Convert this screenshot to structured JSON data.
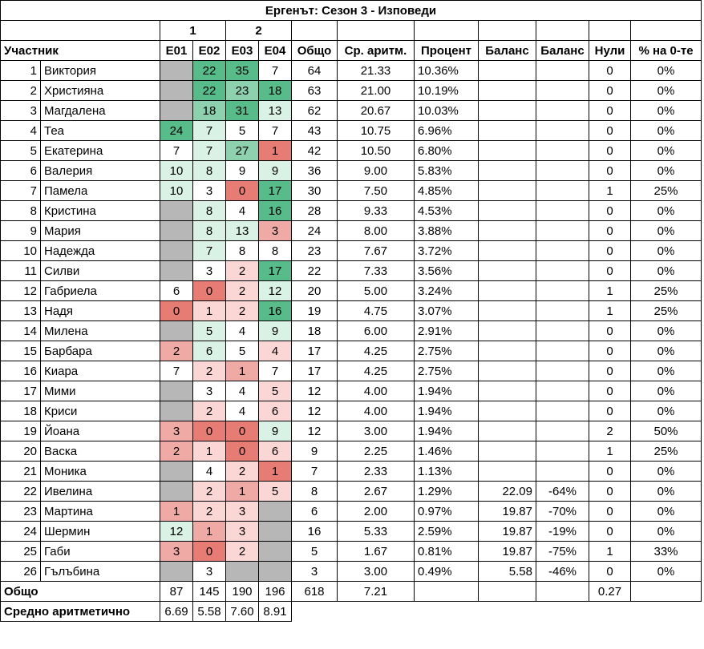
{
  "title": "Ергенът: Сезон 3 - Изповеди",
  "group_labels": [
    "1",
    "2"
  ],
  "headers": [
    "Участник",
    "E01",
    "E02",
    "E03",
    "E04",
    "Общо",
    "Ср. аритм.",
    "Процент",
    "Баланс",
    "Баланс",
    "Нули",
    "% на 0-те"
  ],
  "colors": {
    "gray": "#b7b7b7",
    "red_strong": "#e67c73",
    "red_medium": "#f0aaa6",
    "red_light": "#fad7d4",
    "green_strong": "#57bb8a",
    "green_medium": "#8dd1ae",
    "green_light": "#daf1e5",
    "none": "#ffffff"
  },
  "rows": [
    {
      "rank": "1",
      "name": "Виктория",
      "e": [
        "",
        "22",
        "35",
        "7"
      ],
      "e_color": [
        "gray",
        "green_strong",
        "green_strong",
        "none"
      ],
      "total": "64",
      "avg": "21.33",
      "pct": "10.36%",
      "bal1": "",
      "bal2": "",
      "zeros": "0",
      "zpct": "0%"
    },
    {
      "rank": "2",
      "name": "Християна",
      "e": [
        "",
        "22",
        "23",
        "18"
      ],
      "e_color": [
        "gray",
        "green_strong",
        "green_medium",
        "green_strong"
      ],
      "total": "63",
      "avg": "21.00",
      "pct": "10.19%",
      "bal1": "",
      "bal2": "",
      "zeros": "0",
      "zpct": "0%"
    },
    {
      "rank": "3",
      "name": "Магдалена",
      "e": [
        "",
        "18",
        "31",
        "13"
      ],
      "e_color": [
        "gray",
        "green_medium",
        "green_strong",
        "green_light"
      ],
      "total": "62",
      "avg": "20.67",
      "pct": "10.03%",
      "bal1": "",
      "bal2": "",
      "zeros": "0",
      "zpct": "0%"
    },
    {
      "rank": "4",
      "name": "Теа",
      "e": [
        "24",
        "7",
        "5",
        "7"
      ],
      "e_color": [
        "green_strong",
        "green_light",
        "none",
        "none"
      ],
      "total": "43",
      "avg": "10.75",
      "pct": "6.96%",
      "bal1": "",
      "bal2": "",
      "zeros": "0",
      "zpct": "0%"
    },
    {
      "rank": "5",
      "name": "Екатерина",
      "e": [
        "7",
        "7",
        "27",
        "1"
      ],
      "e_color": [
        "none",
        "green_light",
        "green_medium",
        "red_strong"
      ],
      "total": "42",
      "avg": "10.50",
      "pct": "6.80%",
      "bal1": "",
      "bal2": "",
      "zeros": "0",
      "zpct": "0%"
    },
    {
      "rank": "6",
      "name": "Валерия",
      "e": [
        "10",
        "8",
        "9",
        "9"
      ],
      "e_color": [
        "green_light",
        "green_light",
        "none",
        "green_light"
      ],
      "total": "36",
      "avg": "9.00",
      "pct": "5.83%",
      "bal1": "",
      "bal2": "",
      "zeros": "0",
      "zpct": "0%"
    },
    {
      "rank": "7",
      "name": "Памела",
      "e": [
        "10",
        "3",
        "0",
        "17"
      ],
      "e_color": [
        "green_light",
        "none",
        "red_strong",
        "green_strong"
      ],
      "total": "30",
      "avg": "7.50",
      "pct": "4.85%",
      "bal1": "",
      "bal2": "",
      "zeros": "1",
      "zpct": "25%"
    },
    {
      "rank": "8",
      "name": "Кристина",
      "e": [
        "",
        "8",
        "4",
        "16"
      ],
      "e_color": [
        "gray",
        "green_light",
        "none",
        "green_strong"
      ],
      "total": "28",
      "avg": "9.33",
      "pct": "4.53%",
      "bal1": "",
      "bal2": "",
      "zeros": "0",
      "zpct": "0%"
    },
    {
      "rank": "9",
      "name": "Мария",
      "e": [
        "",
        "8",
        "13",
        "3"
      ],
      "e_color": [
        "gray",
        "green_light",
        "green_light",
        "red_medium"
      ],
      "total": "24",
      "avg": "8.00",
      "pct": "3.88%",
      "bal1": "",
      "bal2": "",
      "zeros": "0",
      "zpct": "0%"
    },
    {
      "rank": "10",
      "name": "Надежда",
      "e": [
        "",
        "7",
        "8",
        "8"
      ],
      "e_color": [
        "gray",
        "green_light",
        "none",
        "none"
      ],
      "total": "23",
      "avg": "7.67",
      "pct": "3.72%",
      "bal1": "",
      "bal2": "",
      "zeros": "0",
      "zpct": "0%"
    },
    {
      "rank": "11",
      "name": "Силви",
      "e": [
        "",
        "3",
        "2",
        "17"
      ],
      "e_color": [
        "gray",
        "none",
        "red_light",
        "green_strong"
      ],
      "total": "22",
      "avg": "7.33",
      "pct": "3.56%",
      "bal1": "",
      "bal2": "",
      "zeros": "0",
      "zpct": "0%"
    },
    {
      "rank": "12",
      "name": "Габриела",
      "e": [
        "6",
        "0",
        "2",
        "12"
      ],
      "e_color": [
        "none",
        "red_strong",
        "red_light",
        "green_light"
      ],
      "total": "20",
      "avg": "5.00",
      "pct": "3.24%",
      "bal1": "",
      "bal2": "",
      "zeros": "1",
      "zpct": "25%"
    },
    {
      "rank": "13",
      "name": "Надя",
      "e": [
        "0",
        "1",
        "2",
        "16"
      ],
      "e_color": [
        "red_strong",
        "red_light",
        "red_light",
        "green_strong"
      ],
      "total": "19",
      "avg": "4.75",
      "pct": "3.07%",
      "bal1": "",
      "bal2": "",
      "zeros": "1",
      "zpct": "25%"
    },
    {
      "rank": "14",
      "name": "Милена",
      "e": [
        "",
        "5",
        "4",
        "9"
      ],
      "e_color": [
        "gray",
        "green_light",
        "none",
        "green_light"
      ],
      "total": "18",
      "avg": "6.00",
      "pct": "2.91%",
      "bal1": "",
      "bal2": "",
      "zeros": "0",
      "zpct": "0%"
    },
    {
      "rank": "15",
      "name": "Барбара",
      "e": [
        "2",
        "6",
        "5",
        "4"
      ],
      "e_color": [
        "red_medium",
        "green_light",
        "none",
        "red_light"
      ],
      "total": "17",
      "avg": "4.25",
      "pct": "2.75%",
      "bal1": "",
      "bal2": "",
      "zeros": "0",
      "zpct": "0%"
    },
    {
      "rank": "16",
      "name": "Киара",
      "e": [
        "7",
        "2",
        "1",
        "7"
      ],
      "e_color": [
        "none",
        "red_light",
        "red_medium",
        "none"
      ],
      "total": "17",
      "avg": "4.25",
      "pct": "2.75%",
      "bal1": "",
      "bal2": "",
      "zeros": "0",
      "zpct": "0%"
    },
    {
      "rank": "17",
      "name": "Мими",
      "e": [
        "",
        "3",
        "4",
        "5"
      ],
      "e_color": [
        "gray",
        "none",
        "none",
        "red_light"
      ],
      "total": "12",
      "avg": "4.00",
      "pct": "1.94%",
      "bal1": "",
      "bal2": "",
      "zeros": "0",
      "zpct": "0%"
    },
    {
      "rank": "18",
      "name": "Криси",
      "e": [
        "",
        "2",
        "4",
        "6"
      ],
      "e_color": [
        "gray",
        "red_light",
        "none",
        "red_light"
      ],
      "total": "12",
      "avg": "4.00",
      "pct": "1.94%",
      "bal1": "",
      "bal2": "",
      "zeros": "0",
      "zpct": "0%"
    },
    {
      "rank": "19",
      "name": "Йоана",
      "e": [
        "3",
        "0",
        "0",
        "9"
      ],
      "e_color": [
        "red_medium",
        "red_strong",
        "red_strong",
        "green_light"
      ],
      "total": "12",
      "avg": "3.00",
      "pct": "1.94%",
      "bal1": "",
      "bal2": "",
      "zeros": "2",
      "zpct": "50%"
    },
    {
      "rank": "20",
      "name": "Васка",
      "e": [
        "2",
        "1",
        "0",
        "6"
      ],
      "e_color": [
        "red_medium",
        "red_light",
        "red_strong",
        "red_light"
      ],
      "total": "9",
      "avg": "2.25",
      "pct": "1.46%",
      "bal1": "",
      "bal2": "",
      "zeros": "1",
      "zpct": "25%"
    },
    {
      "rank": "21",
      "name": "Моника",
      "e": [
        "",
        "4",
        "2",
        "1"
      ],
      "e_color": [
        "gray",
        "none",
        "red_light",
        "red_strong"
      ],
      "total": "7",
      "avg": "2.33",
      "pct": "1.13%",
      "bal1": "",
      "bal2": "",
      "zeros": "0",
      "zpct": "0%"
    },
    {
      "rank": "22",
      "name": "Ивелина",
      "e": [
        "",
        "2",
        "1",
        "5"
      ],
      "e_color": [
        "gray",
        "red_light",
        "red_medium",
        "red_light"
      ],
      "total": "8",
      "avg": "2.67",
      "pct": "1.29%",
      "bal1": "22.09",
      "bal2": "-64%",
      "zeros": "0",
      "zpct": "0%"
    },
    {
      "rank": "23",
      "name": "Мартина",
      "e": [
        "1",
        "2",
        "3",
        ""
      ],
      "e_color": [
        "red_medium",
        "red_light",
        "red_light",
        "gray"
      ],
      "total": "6",
      "avg": "2.00",
      "pct": "0.97%",
      "bal1": "19.87",
      "bal2": "-70%",
      "zeros": "0",
      "zpct": "0%"
    },
    {
      "rank": "24",
      "name": "Шермин",
      "e": [
        "12",
        "1",
        "3",
        ""
      ],
      "e_color": [
        "green_light",
        "red_medium",
        "red_light",
        "gray"
      ],
      "total": "16",
      "avg": "5.33",
      "pct": "2.59%",
      "bal1": "19.87",
      "bal2": "-19%",
      "zeros": "0",
      "zpct": "0%"
    },
    {
      "rank": "25",
      "name": "Габи",
      "e": [
        "3",
        "0",
        "2",
        ""
      ],
      "e_color": [
        "red_medium",
        "red_strong",
        "red_light",
        "gray"
      ],
      "total": "5",
      "avg": "1.67",
      "pct": "0.81%",
      "bal1": "19.87",
      "bal2": "-75%",
      "zeros": "1",
      "zpct": "33%"
    },
    {
      "rank": "26",
      "name": "Гълъбина",
      "e": [
        "",
        "3",
        "",
        ""
      ],
      "e_color": [
        "gray",
        "none",
        "gray",
        "gray"
      ],
      "total": "3",
      "avg": "3.00",
      "pct": "0.49%",
      "bal1": "5.58",
      "bal2": "-46%",
      "zeros": "0",
      "zpct": "0%"
    }
  ],
  "total_row": {
    "label": "Общо",
    "e": [
      "87",
      "145",
      "190",
      "196"
    ],
    "total": "618",
    "avg": "7.21",
    "zeros": "0.27"
  },
  "avg_row": {
    "label": "Средно аритметично",
    "e": [
      "6.69",
      "5.58",
      "7.60",
      "8.91"
    ]
  }
}
